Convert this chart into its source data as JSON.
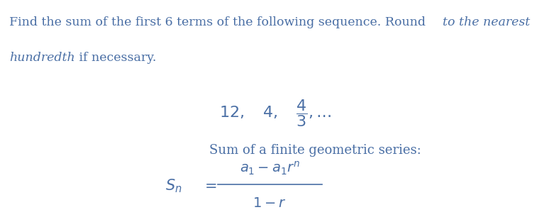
{
  "bg_color": "#ffffff",
  "text_color": "#4a6fa5",
  "line1": "Find the sum of the first 6 terms of the following sequence. Round ",
  "line1b": "to the nearest",
  "line2_italic": "hundredth",
  "line2_rest": " if necessary.",
  "sequence_label": "12,\\quad 4,\\quad \\dfrac{4}{3},\\ldots",
  "formula_label": "Sum of a finite geometric series:",
  "lhs": "S_n",
  "rhs_num": "a_1 - a_1 r^n",
  "rhs_den": "1 - r",
  "fig_width": 7.81,
  "fig_height": 3.13,
  "dpi": 100
}
